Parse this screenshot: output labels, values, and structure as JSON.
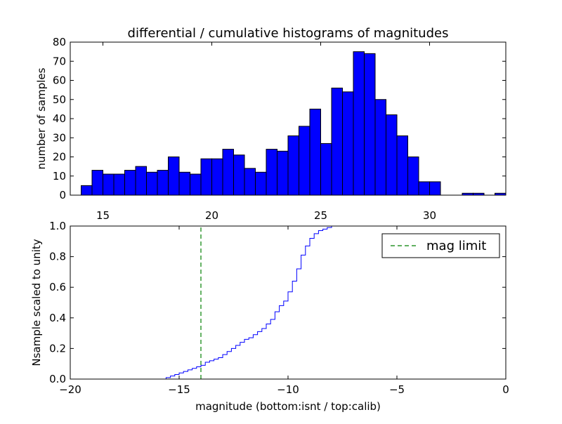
{
  "chart_data": [
    {
      "type": "bar",
      "title": "differential / cumulative histograms of magnitudes",
      "xlabel": "",
      "ylabel": "number of samples",
      "xlim": [
        13.5,
        33.5
      ],
      "ylim": [
        0,
        80
      ],
      "xticks": [
        15,
        20,
        25,
        30
      ],
      "yticks": [
        0,
        10,
        20,
        30,
        40,
        50,
        60,
        70,
        80
      ],
      "bin_start": 13.5,
      "bin_width": 0.5,
      "values": [
        0,
        5,
        13,
        11,
        11,
        13,
        15,
        12,
        13,
        20,
        12,
        11,
        19,
        19,
        24,
        21,
        14,
        12,
        24,
        23,
        31,
        36,
        45,
        27,
        56,
        54,
        75,
        74,
        50,
        42,
        31,
        20,
        7,
        7,
        0,
        0,
        1,
        1,
        0,
        1
      ],
      "bar_color": "#0000ff"
    },
    {
      "type": "line",
      "xlabel": "magnitude (bottom:isnt / top:calib)",
      "ylabel": "Nsample scaled to unity",
      "xlim": [
        -20,
        0
      ],
      "ylim": [
        0.0,
        1.0
      ],
      "xticks": [
        -20,
        -15,
        -10,
        -5,
        0
      ],
      "yticks": [
        0.0,
        0.2,
        0.4,
        0.6,
        0.8,
        1.0
      ],
      "step_x": [
        -15.8,
        -15.6,
        -15.4,
        -15.2,
        -15.0,
        -14.8,
        -14.6,
        -14.4,
        -14.2,
        -14.0,
        -13.8,
        -13.6,
        -13.4,
        -13.2,
        -13.0,
        -12.8,
        -12.6,
        -12.4,
        -12.2,
        -12.0,
        -11.8,
        -11.6,
        -11.4,
        -11.2,
        -11.0,
        -10.8,
        -10.6,
        -10.4,
        -10.2,
        -10.0,
        -9.8,
        -9.6,
        -9.4,
        -9.2,
        -9.0,
        -8.8,
        -8.6,
        -8.4,
        -8.2,
        -8.0,
        -7.8,
        -7.6
      ],
      "step_y": [
        0.0,
        0.01,
        0.02,
        0.03,
        0.04,
        0.05,
        0.06,
        0.07,
        0.08,
        0.09,
        0.11,
        0.12,
        0.13,
        0.14,
        0.16,
        0.18,
        0.2,
        0.22,
        0.24,
        0.26,
        0.27,
        0.29,
        0.31,
        0.33,
        0.36,
        0.39,
        0.44,
        0.48,
        0.51,
        0.57,
        0.64,
        0.72,
        0.81,
        0.87,
        0.92,
        0.95,
        0.97,
        0.98,
        0.99,
        1.0,
        1.0,
        1.0
      ],
      "line_color": "#0000ff",
      "mag_limit": -14.0,
      "mag_limit_color": "#008000",
      "legend": {
        "label": "mag limit",
        "placement": "top-right"
      }
    }
  ]
}
